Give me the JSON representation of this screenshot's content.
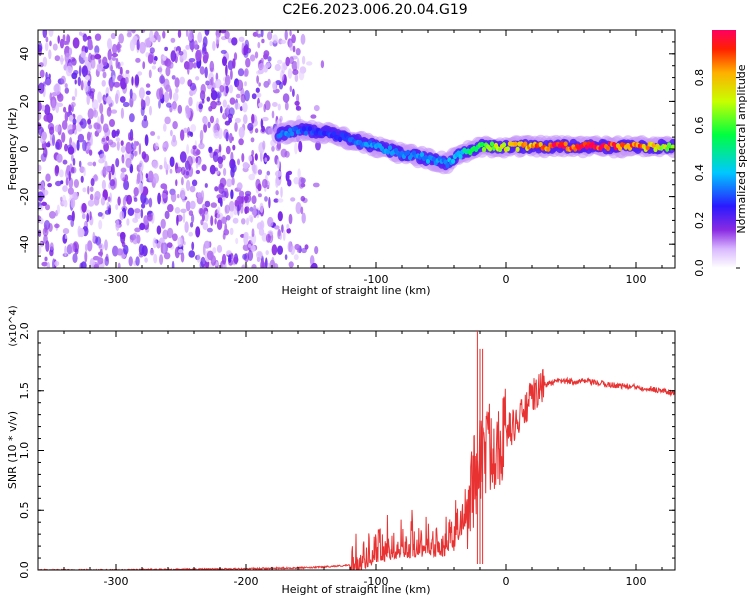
{
  "title": "C2E6.2023.006.20.04.G19",
  "chart_data": [
    {
      "type": "heatmap",
      "xlabel": "Height of straight line (km)",
      "ylabel": "Frequency (Hz)",
      "xlim": [
        -360,
        130
      ],
      "ylim": [
        -50,
        50
      ],
      "x_ticks": [
        -300,
        -200,
        -100,
        0,
        100
      ],
      "y_ticks": [
        -40,
        -20,
        0,
        20,
        40
      ],
      "colorbar": {
        "label": "Normalized spectral amplitude",
        "range": [
          0.0,
          1.0
        ],
        "ticks": [
          0.0,
          0.2,
          0.4,
          0.6,
          0.8
        ],
        "colormap": "rainbow (white-violet-blue-cyan-green-yellow-red)"
      },
      "features": {
        "noise_region_x": [
          -360,
          -150
        ],
        "signal_ridge": [
          {
            "x": -175,
            "y": 6,
            "amp": 0.35
          },
          {
            "x": -160,
            "y": 8,
            "amp": 0.3
          },
          {
            "x": -140,
            "y": 7,
            "amp": 0.25
          },
          {
            "x": -120,
            "y": 4,
            "amp": 0.3
          },
          {
            "x": -100,
            "y": 1,
            "amp": 0.35
          },
          {
            "x": -80,
            "y": -2,
            "amp": 0.35
          },
          {
            "x": -60,
            "y": -4,
            "amp": 0.35
          },
          {
            "x": -45,
            "y": -6,
            "amp": 0.35
          },
          {
            "x": -35,
            "y": -2,
            "amp": 0.4
          },
          {
            "x": -20,
            "y": 1,
            "amp": 0.6
          },
          {
            "x": 0,
            "y": 1,
            "amp": 0.7
          },
          {
            "x": 40,
            "y": 1,
            "amp": 0.9
          },
          {
            "x": 80,
            "y": 1,
            "amp": 0.9
          },
          {
            "x": 100,
            "y": 1,
            "amp": 0.85
          },
          {
            "x": 130,
            "y": 1,
            "amp": 0.6
          }
        ]
      }
    },
    {
      "type": "line",
      "xlabel": "Height of straight line (km)",
      "ylabel": "SNR (10 * v/v)",
      "multiplier": "(x10^4)",
      "xlim": [
        -360,
        130
      ],
      "ylim": [
        0.0,
        2.0
      ],
      "x_ticks": [
        -300,
        -200,
        -100,
        0,
        100
      ],
      "y_ticks": [
        0.0,
        0.5,
        1.0,
        1.5,
        2.0
      ],
      "series": [
        {
          "color": "#e83232",
          "x": [
            -360,
            -300,
            -200,
            -150,
            -120,
            -110,
            -100,
            -90,
            -80,
            -70,
            -60,
            -50,
            -40,
            -30,
            -25,
            -20,
            -15,
            -10,
            0,
            10,
            20,
            30,
            40,
            60,
            80,
            100,
            110,
            120,
            130
          ],
          "y": [
            0.0,
            0.0,
            0.01,
            0.02,
            0.04,
            0.12,
            0.18,
            0.2,
            0.22,
            0.22,
            0.24,
            0.22,
            0.28,
            0.5,
            0.75,
            0.95,
            1.0,
            1.05,
            1.15,
            1.25,
            1.45,
            1.55,
            1.58,
            1.58,
            1.55,
            1.53,
            1.52,
            1.5,
            1.48
          ]
        }
      ]
    }
  ]
}
